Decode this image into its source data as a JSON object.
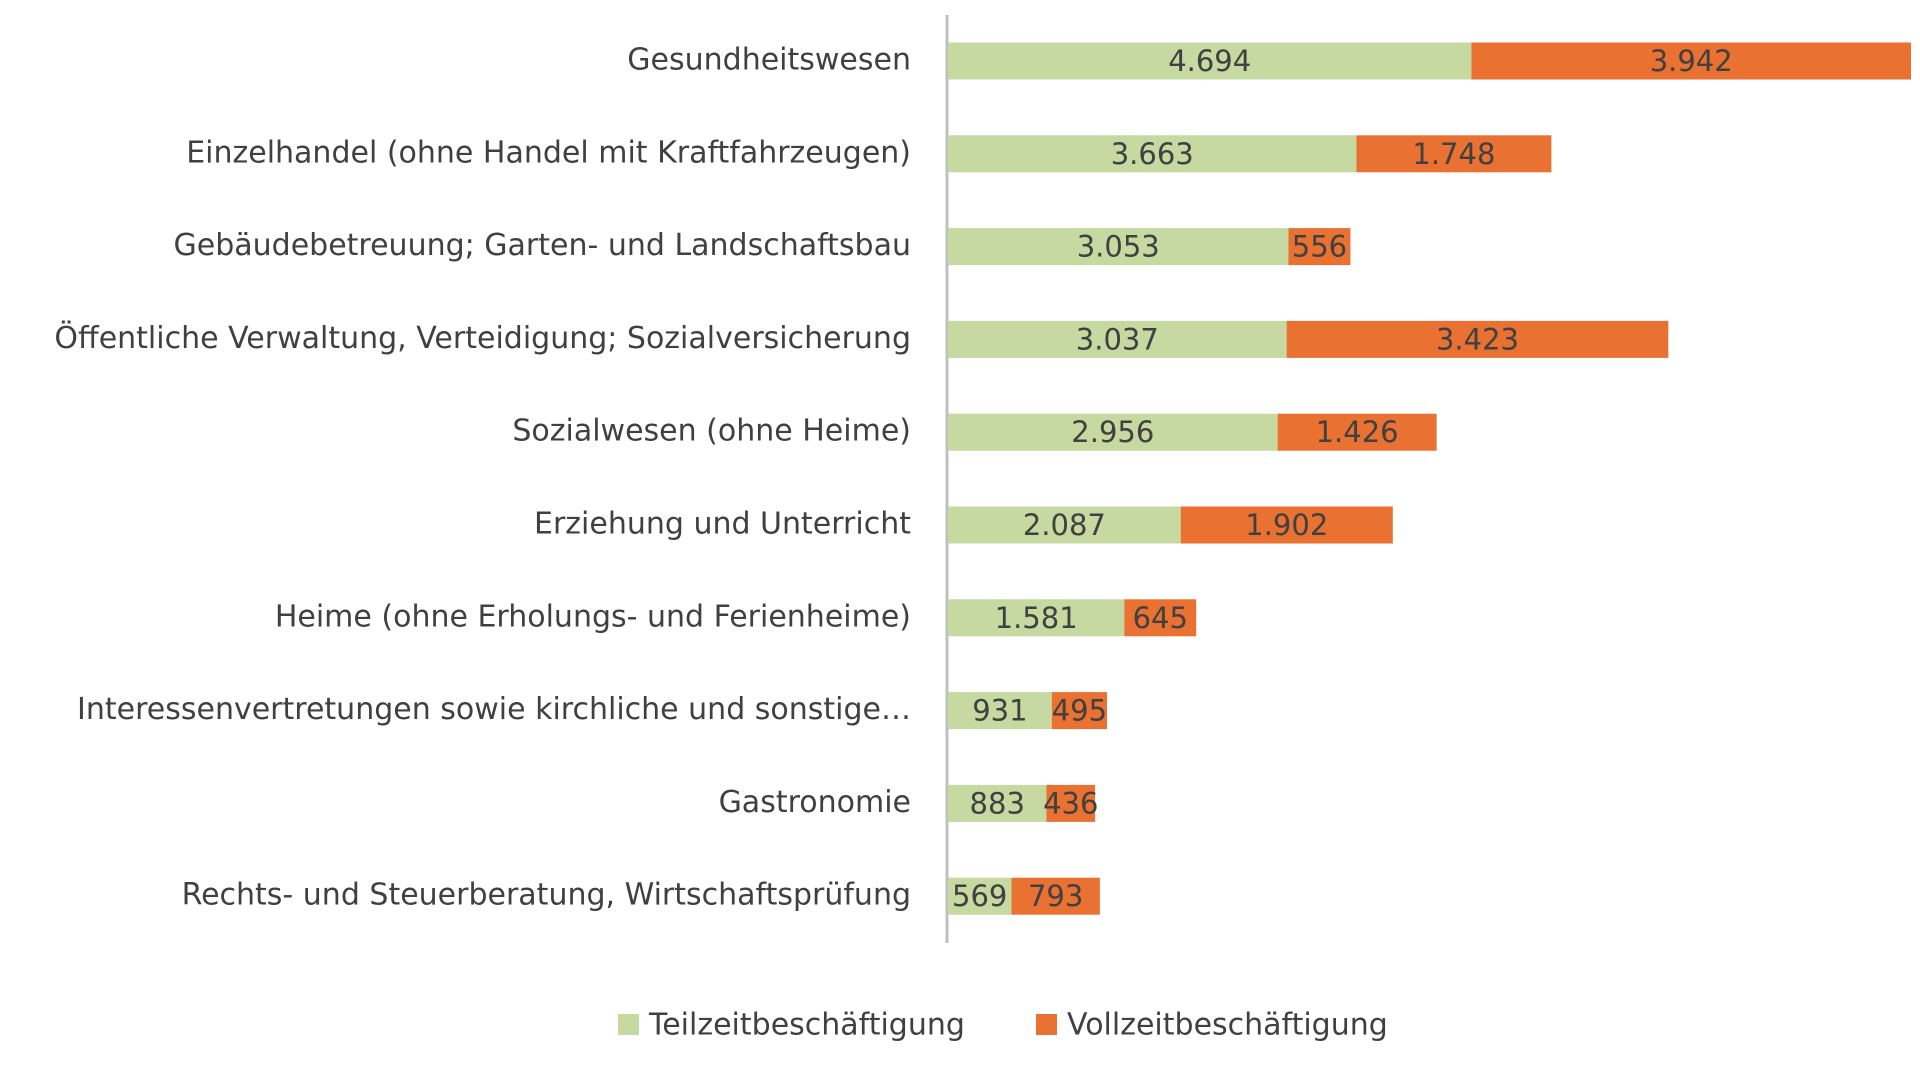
{
  "chart_data": {
    "type": "stacked-bar-horizontal",
    "categories": [
      "Gesundheitswesen",
      "Einzelhandel (ohne Handel mit Kraftfahrzeugen)",
      "Gebäudebetreuung; Garten- und Landschaftsbau",
      "Öffentliche Verwaltung, Verteidigung; Sozialversicherung",
      "Sozialwesen (ohne Heime)",
      "Erziehung und Unterricht",
      "Heime (ohne Erholungs- und Ferienheime)",
      "Interessenvertretungen sowie kirchliche und sonstige…",
      "Gastronomie",
      "Rechts- und Steuerberatung, Wirtschaftsprüfung"
    ],
    "series": [
      {
        "name": "Teilzeitbeschäftigung",
        "color": "#c5d9a0",
        "values": [
          4694,
          3663,
          3053,
          3037,
          2956,
          2087,
          1581,
          931,
          883,
          569
        ],
        "value_labels": [
          "4.694",
          "3.663",
          "3.053",
          "3.037",
          "2.956",
          "2.087",
          "1.581",
          "931",
          "883",
          "569"
        ]
      },
      {
        "name": "Vollzeitbeschäftigung",
        "color": "#e97132",
        "values": [
          3942,
          1748,
          556,
          3423,
          1426,
          1902,
          645,
          495,
          436,
          793
        ],
        "value_labels": [
          "3.942",
          "1.748",
          "556",
          "3.423",
          "1.426",
          "1.902",
          "645",
          "495",
          "436",
          "793"
        ]
      }
    ],
    "legend": "bottom"
  }
}
